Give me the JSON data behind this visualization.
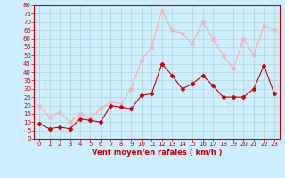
{
  "x": [
    0,
    1,
    2,
    3,
    4,
    5,
    6,
    7,
    8,
    9,
    10,
    11,
    12,
    13,
    14,
    15,
    16,
    17,
    18,
    19,
    20,
    21,
    22,
    23
  ],
  "y_mean": [
    9,
    6,
    7,
    6,
    12,
    11,
    10,
    20,
    19,
    18,
    26,
    27,
    45,
    38,
    30,
    33,
    38,
    32,
    25,
    25,
    25,
    30,
    44,
    27
  ],
  "y_gust": [
    20,
    13,
    16,
    10,
    15,
    12,
    18,
    22,
    21,
    30,
    47,
    55,
    77,
    65,
    63,
    57,
    70,
    60,
    50,
    42,
    60,
    50,
    68,
    65
  ],
  "xlabel": "Vent moyen/en rafales ( km/h )",
  "ylim": [
    0,
    80
  ],
  "xlim": [
    -0.5,
    23.5
  ],
  "yticks": [
    0,
    5,
    10,
    15,
    20,
    25,
    30,
    35,
    40,
    45,
    50,
    55,
    60,
    65,
    70,
    75,
    80
  ],
  "xticks": [
    0,
    1,
    2,
    3,
    4,
    5,
    6,
    7,
    8,
    9,
    10,
    11,
    12,
    13,
    14,
    15,
    16,
    17,
    18,
    19,
    20,
    21,
    22,
    23
  ],
  "color_mean": "#cc0000",
  "color_gust": "#ffaaaa",
  "bg_color": "#cceeff",
  "grid_color": "#aacccc",
  "axis_color": "#cc0000",
  "label_color": "#cc0000",
  "marker_size": 2.5,
  "line_width": 0.8,
  "tick_fontsize": 5.0,
  "xlabel_fontsize": 6.0
}
